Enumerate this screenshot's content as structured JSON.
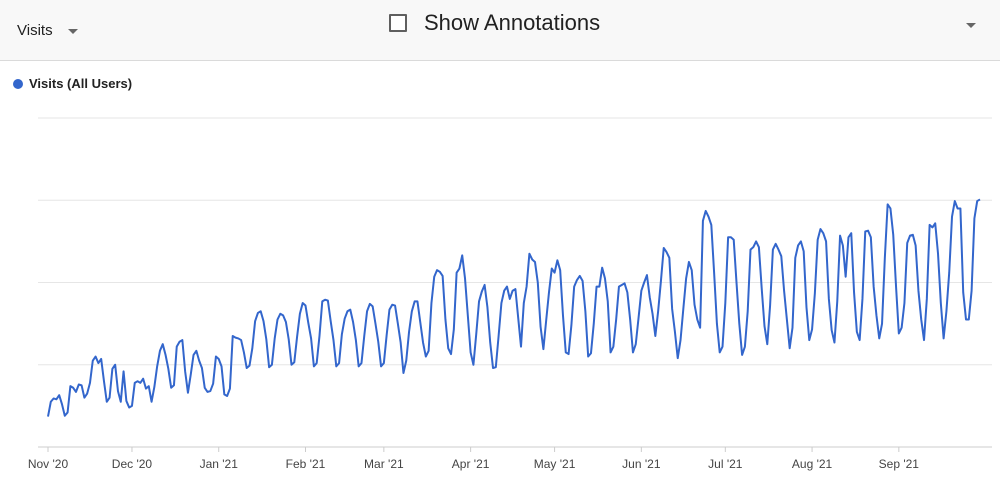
{
  "toolbar": {
    "metric_label": "Visits",
    "metric_dropdown_icon": "caret-down-icon",
    "annotations_label": "Show Annotations",
    "annotations_checked": false,
    "right_dropdown_icon": "caret-down-icon"
  },
  "chart_data": {
    "type": "line",
    "title": "",
    "xlabel": "",
    "ylabel": "",
    "legend_position": "top-left",
    "grid": true,
    "colors": {
      "series": "#3366cc",
      "grid": "#e6e6e6",
      "axis": "#cccccc"
    },
    "x_ticks": [
      "Nov '20",
      "Dec '20",
      "Jan '21",
      "Feb '21",
      "Mar '21",
      "Apr '21",
      "May '21",
      "Jun '21",
      "Jul '21",
      "Aug '21",
      "Sep '21"
    ],
    "ylim": [
      0,
      4
    ],
    "gridlines": [
      1,
      2,
      3,
      4
    ],
    "x_start": "2020-11-01",
    "series": [
      {
        "name": "Visits (All Users)",
        "values": [
          0.37,
          0.55,
          0.59,
          0.58,
          0.63,
          0.52,
          0.38,
          0.42,
          0.74,
          0.72,
          0.67,
          0.76,
          0.75,
          0.6,
          0.65,
          0.78,
          1.05,
          1.1,
          1.02,
          1.07,
          0.8,
          0.55,
          0.6,
          0.95,
          1.0,
          0.68,
          0.55,
          0.92,
          0.56,
          0.48,
          0.5,
          0.78,
          0.8,
          0.78,
          0.83,
          0.71,
          0.74,
          0.55,
          0.73,
          0.98,
          1.17,
          1.25,
          1.12,
          0.95,
          0.72,
          0.75,
          1.22,
          1.28,
          1.3,
          0.92,
          0.66,
          0.88,
          1.12,
          1.17,
          1.05,
          0.96,
          0.72,
          0.67,
          0.68,
          0.77,
          1.1,
          1.07,
          0.98,
          0.64,
          0.62,
          0.71,
          1.35,
          1.33,
          1.32,
          1.3,
          1.15,
          0.96,
          0.99,
          1.2,
          1.53,
          1.63,
          1.65,
          1.53,
          1.31,
          0.97,
          1.0,
          1.32,
          1.55,
          1.62,
          1.6,
          1.52,
          1.31,
          1.0,
          1.03,
          1.34,
          1.62,
          1.75,
          1.72,
          1.51,
          1.32,
          0.98,
          1.02,
          1.35,
          1.77,
          1.79,
          1.78,
          1.53,
          1.3,
          0.98,
          1.02,
          1.37,
          1.56,
          1.65,
          1.67,
          1.52,
          1.3,
          0.98,
          1.02,
          1.35,
          1.65,
          1.74,
          1.71,
          1.5,
          1.28,
          0.98,
          1.02,
          1.36,
          1.67,
          1.73,
          1.72,
          1.5,
          1.27,
          0.9,
          1.05,
          1.4,
          1.65,
          1.77,
          1.77,
          1.52,
          1.27,
          1.1,
          1.17,
          1.75,
          2.07,
          2.15,
          2.13,
          2.08,
          1.55,
          1.2,
          1.13,
          1.43,
          2.12,
          2.17,
          2.33,
          2.05,
          1.6,
          1.15,
          1.0,
          1.37,
          1.77,
          1.89,
          1.97,
          1.7,
          1.27,
          0.96,
          0.97,
          1.35,
          1.75,
          1.9,
          1.95,
          1.8,
          1.9,
          1.92,
          1.57,
          1.22,
          1.75,
          1.95,
          2.35,
          2.28,
          2.25,
          2.0,
          1.46,
          1.19,
          1.54,
          1.88,
          2.17,
          2.12,
          2.27,
          2.15,
          1.6,
          1.15,
          1.13,
          1.48,
          1.95,
          2.03,
          2.08,
          2.02,
          1.65,
          1.1,
          1.14,
          1.5,
          1.95,
          1.95,
          2.18,
          2.05,
          1.77,
          1.15,
          1.22,
          1.55,
          1.95,
          1.97,
          1.99,
          1.88,
          1.55,
          1.15,
          1.25,
          1.57,
          1.9,
          2.0,
          2.09,
          1.82,
          1.62,
          1.35,
          1.65,
          2.02,
          2.42,
          2.37,
          2.3,
          1.68,
          1.4,
          1.08,
          1.3,
          1.68,
          2.05,
          2.25,
          2.15,
          1.73,
          1.55,
          1.45,
          2.75,
          2.87,
          2.8,
          2.7,
          2.12,
          1.5,
          1.15,
          1.22,
          1.75,
          2.55,
          2.55,
          2.52,
          2.0,
          1.5,
          1.12,
          1.22,
          1.65,
          2.4,
          2.43,
          2.5,
          2.43,
          1.93,
          1.47,
          1.25,
          1.72,
          2.4,
          2.47,
          2.4,
          2.32,
          1.9,
          1.55,
          1.2,
          1.45,
          2.3,
          2.45,
          2.5,
          2.38,
          1.7,
          1.3,
          1.43,
          1.87,
          2.52,
          2.65,
          2.6,
          2.5,
          1.8,
          1.42,
          1.27,
          1.77,
          2.57,
          2.45,
          2.07,
          2.55,
          2.6,
          1.88,
          1.4,
          1.3,
          1.8,
          2.62,
          2.63,
          2.55,
          1.95,
          1.6,
          1.32,
          1.5,
          2.3,
          2.95,
          2.9,
          2.58,
          1.95,
          1.38,
          1.45,
          1.75,
          2.48,
          2.57,
          2.58,
          2.45,
          1.9,
          1.55,
          1.3,
          1.8,
          2.7,
          2.67,
          2.72,
          2.35,
          1.75,
          1.32,
          1.65,
          2.12,
          2.8,
          2.99,
          2.9,
          2.9,
          1.88,
          1.55,
          1.55,
          1.9,
          2.78,
          2.99,
          3.01
        ]
      }
    ]
  },
  "legend": {
    "label": "Visits (All Users)",
    "color": "#3366cc"
  }
}
